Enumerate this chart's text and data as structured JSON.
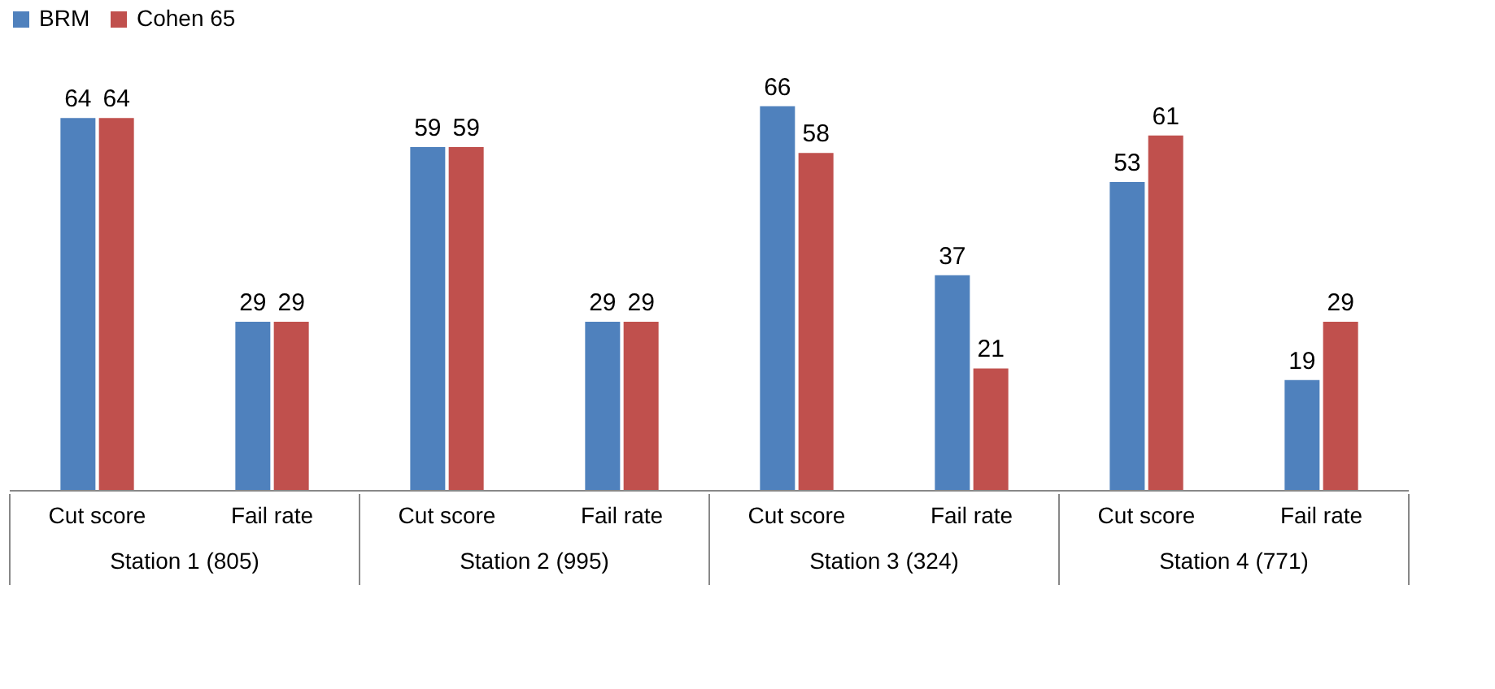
{
  "chart_data": {
    "type": "bar",
    "categories": [
      "Cut score",
      "Fail rate",
      "Cut score",
      "Fail rate",
      "Cut score",
      "Fail rate",
      "Cut score",
      "Fail rate"
    ],
    "series": [
      {
        "name": "BRM",
        "color": "#4f81bd",
        "values": [
          64,
          29,
          59,
          29,
          66,
          37,
          53,
          19
        ]
      },
      {
        "name": "Cohen 65",
        "color": "#c0504d",
        "values": [
          64,
          29,
          59,
          29,
          58,
          21,
          61,
          29
        ]
      }
    ],
    "annotations": [
      "Station 1 (805)",
      "Station 2 (995)",
      "Station 3 (324)",
      "Station 4 (771)"
    ],
    "data_labels": true,
    "legend": "top"
  }
}
